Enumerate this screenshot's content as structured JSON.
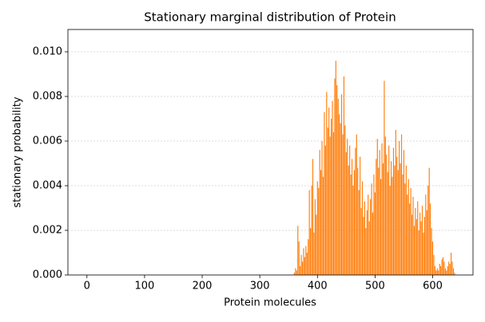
{
  "chart_data": {
    "type": "bar",
    "title": "Stationary marginal distribution of Protein",
    "x_label": "Protein molecules",
    "y_label": "stationary probability",
    "color": "#ff7f0e",
    "grid": true,
    "xlim": [
      -33,
      670
    ],
    "ylim": [
      0,
      0.011
    ],
    "xticks": [
      0,
      100,
      200,
      300,
      400,
      500,
      600
    ],
    "yticks": [
      {
        "value": 0,
        "label": "0.000"
      },
      {
        "value": 0.002,
        "label": "0.002"
      },
      {
        "value": 0.004,
        "label": "0.004"
      },
      {
        "value": 0.006,
        "label": "0.006"
      },
      {
        "value": 0.008,
        "label": "0.008"
      },
      {
        "value": 0.01,
        "label": "0.010"
      }
    ],
    "x": [
      360,
      362,
      364,
      366,
      368,
      370,
      372,
      374,
      376,
      378,
      380,
      382,
      384,
      386,
      388,
      390,
      392,
      394,
      396,
      398,
      400,
      402,
      404,
      406,
      408,
      410,
      412,
      414,
      416,
      418,
      420,
      422,
      424,
      426,
      428,
      430,
      432,
      434,
      436,
      438,
      440,
      442,
      444,
      446,
      448,
      450,
      452,
      454,
      456,
      458,
      460,
      462,
      464,
      466,
      468,
      470,
      472,
      474,
      476,
      478,
      480,
      482,
      484,
      486,
      488,
      490,
      492,
      494,
      496,
      498,
      500,
      502,
      504,
      506,
      508,
      510,
      512,
      514,
      516,
      518,
      520,
      522,
      524,
      526,
      528,
      530,
      532,
      534,
      536,
      538,
      540,
      542,
      544,
      546,
      548,
      550,
      552,
      554,
      556,
      558,
      560,
      562,
      564,
      566,
      568,
      570,
      572,
      574,
      576,
      578,
      580,
      582,
      584,
      586,
      588,
      590,
      592,
      594,
      596,
      598,
      600,
      602,
      604,
      606,
      608,
      610,
      612,
      614,
      616,
      618,
      620,
      622,
      624,
      626,
      628,
      630,
      632,
      634,
      636,
      638
    ],
    "values": [
      0.0001,
      0.0003,
      0.0002,
      0.0022,
      0.0015,
      0.0004,
      0.0009,
      0.0006,
      0.0012,
      0.0008,
      0.0013,
      0.001,
      0.0016,
      0.0038,
      0.0021,
      0.004,
      0.0052,
      0.0019,
      0.0034,
      0.0027,
      0.0042,
      0.0039,
      0.0056,
      0.0047,
      0.006,
      0.0044,
      0.0073,
      0.0058,
      0.0082,
      0.0066,
      0.0075,
      0.0062,
      0.007,
      0.0078,
      0.0064,
      0.0088,
      0.0096,
      0.0085,
      0.0079,
      0.0072,
      0.0068,
      0.0081,
      0.0063,
      0.0089,
      0.0067,
      0.0055,
      0.0061,
      0.0049,
      0.0058,
      0.0045,
      0.0052,
      0.004,
      0.0047,
      0.0057,
      0.0063,
      0.0048,
      0.0038,
      0.0053,
      0.003,
      0.0042,
      0.0026,
      0.0033,
      0.0021,
      0.0029,
      0.0036,
      0.0024,
      0.0034,
      0.0041,
      0.0028,
      0.0045,
      0.0037,
      0.0052,
      0.0061,
      0.0048,
      0.0056,
      0.0043,
      0.0059,
      0.005,
      0.0087,
      0.0062,
      0.0054,
      0.0046,
      0.0058,
      0.004,
      0.0051,
      0.0044,
      0.0057,
      0.0049,
      0.0065,
      0.0053,
      0.0047,
      0.006,
      0.005,
      0.0063,
      0.0045,
      0.0056,
      0.0041,
      0.0049,
      0.0036,
      0.0043,
      0.0032,
      0.0039,
      0.0027,
      0.0035,
      0.0022,
      0.003,
      0.0025,
      0.0033,
      0.002,
      0.0028,
      0.0024,
      0.0031,
      0.0019,
      0.0026,
      0.0036,
      0.0029,
      0.004,
      0.0048,
      0.0032,
      0.0021,
      0.0015,
      0.0009,
      0.0004,
      0.0002,
      0.0003,
      0.0002,
      0.0005,
      0.0004,
      0.0007,
      0.0008,
      0.0006,
      0.0003,
      0.0002,
      0.0004,
      0.0006,
      0.0005,
      0.001,
      0.0006,
      0.0003,
      0.0001
    ]
  }
}
